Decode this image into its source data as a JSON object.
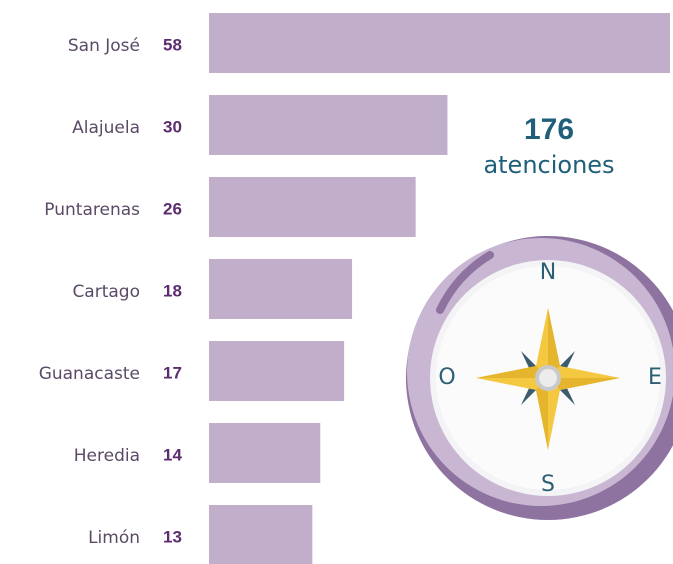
{
  "chart_data": {
    "type": "bar",
    "orientation": "horizontal",
    "categories": [
      "San José",
      "Alajuela",
      "Puntarenas",
      "Cartago",
      "Guanacaste",
      "Heredia",
      "Limón"
    ],
    "values": [
      58,
      30,
      26,
      18,
      17,
      14,
      13
    ],
    "color": "#c1aecb",
    "annotation": {
      "value": "176",
      "label": "atenciones"
    },
    "compass": {
      "north": "N",
      "west": "O",
      "east": "E",
      "south": "S"
    }
  }
}
